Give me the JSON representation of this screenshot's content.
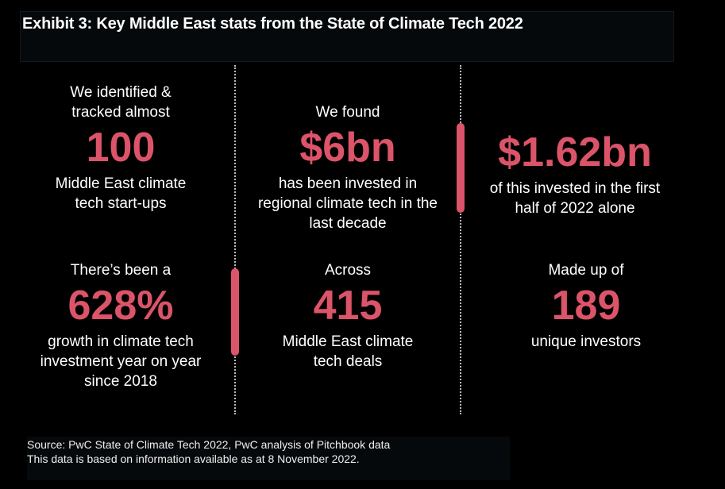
{
  "title": "Exhibit 3: Key Middle East stats from the State of Climate Tech 2022",
  "accent_color": "#dc5469",
  "stats": [
    {
      "pre": "We identified & tracked almost",
      "value": "100",
      "post": "Middle East climate tech start-ups"
    },
    {
      "pre": "We found",
      "value": "$6bn",
      "post": "has been invested in regional climate tech in the last decade"
    },
    {
      "pre": "",
      "value": "$1.62bn",
      "post": "of this invested in the first half of 2022 alone"
    },
    {
      "pre": "There’s been a",
      "value": "628%",
      "post": "growth in climate tech investment year on year since 2018"
    },
    {
      "pre": "Across",
      "value": "415",
      "post": "Middle East climate tech deals"
    },
    {
      "pre": "Made up of",
      "value": "189",
      "post": "unique investors"
    }
  ],
  "source": {
    "line1": "Source: PwC State of Climate Tech 2022, PwC analysis of Pitchbook data",
    "line2": "This data is based on information available as at 8 November 2022."
  }
}
